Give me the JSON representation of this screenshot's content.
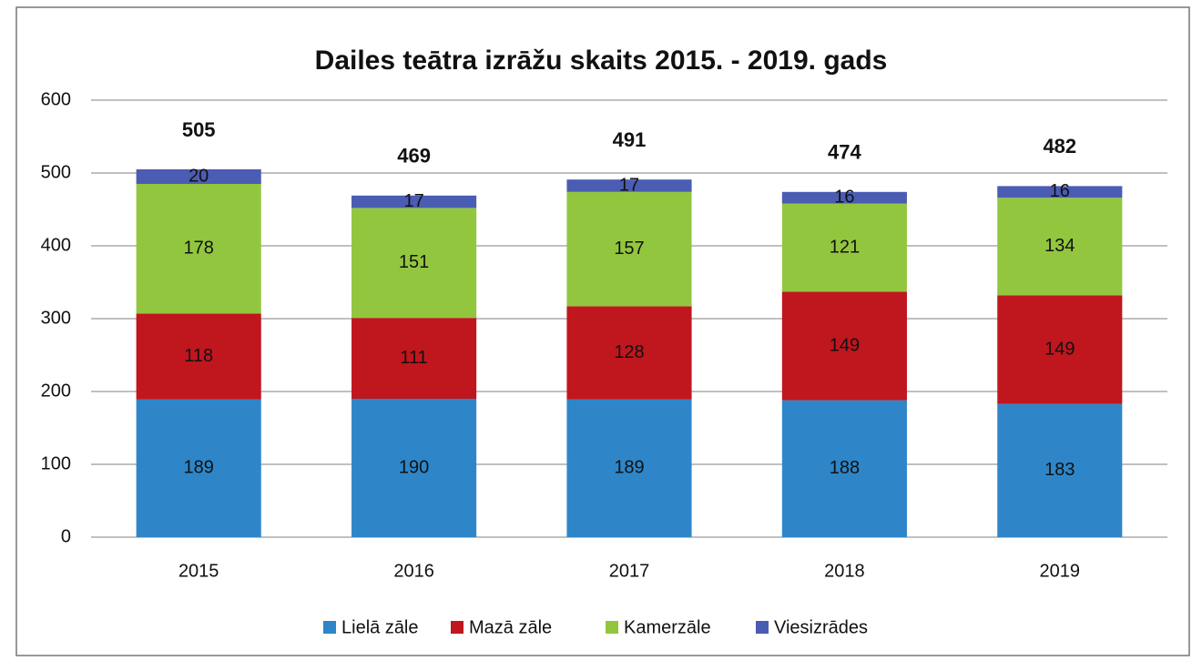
{
  "chart_data": {
    "type": "stacked_bar",
    "title": "Dailes teātra izrāžu skaits 2015. - 2019. gads",
    "categories": [
      "2015",
      "2016",
      "2017",
      "2018",
      "2019"
    ],
    "series": [
      {
        "name": "Lielā zāle",
        "color": "#2e86c8",
        "values": [
          189,
          190,
          189,
          188,
          183
        ]
      },
      {
        "name": "Mazā zāle",
        "color": "#c0161e",
        "values": [
          118,
          111,
          128,
          149,
          149
        ]
      },
      {
        "name": "Kamerzāle",
        "color": "#93c63f",
        "values": [
          178,
          151,
          157,
          121,
          134
        ]
      },
      {
        "name": "Viesizrādes",
        "color": "#4b5cb3",
        "values": [
          20,
          17,
          17,
          16,
          16
        ]
      }
    ],
    "totals": [
      505,
      469,
      491,
      474,
      482
    ],
    "ylim": [
      0,
      600
    ],
    "yticks": [
      0,
      100,
      200,
      300,
      400,
      500,
      600
    ],
    "grid": true,
    "legend": "bottom"
  }
}
